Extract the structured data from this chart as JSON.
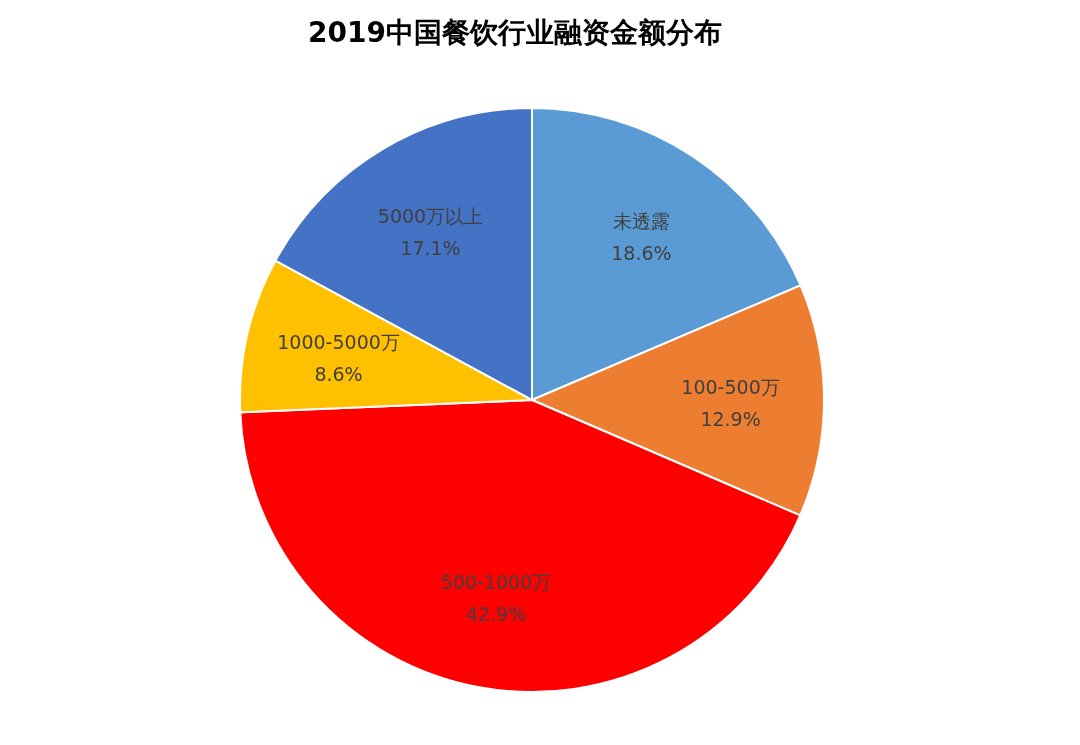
{
  "chart_data": {
    "type": "pie",
    "title": "2019中国餐饮行业融资金额分布",
    "categories": [
      "未透露",
      "100-500万",
      "500-1000万",
      "1000-5000万",
      "5000万以上"
    ],
    "values": [
      18.6,
      12.9,
      42.9,
      8.6,
      17.1
    ],
    "colors": [
      "#5b9bd5",
      "#ed7d31",
      "#ff0000",
      "#ffc000",
      "#4472c4"
    ],
    "value_labels": [
      "18.6%",
      "12.9%",
      "42.9%",
      "8.6%",
      "17.1%"
    ]
  }
}
